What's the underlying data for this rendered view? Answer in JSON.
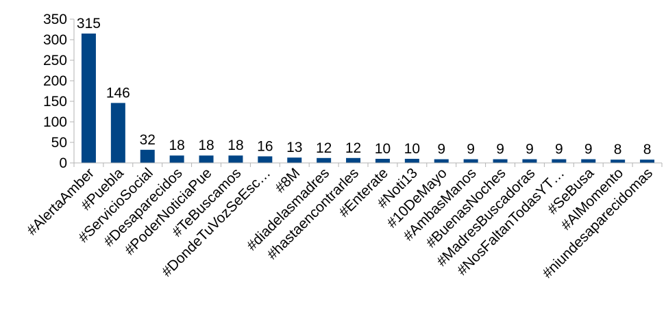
{
  "chart_data": {
    "type": "bar",
    "title": "",
    "xlabel": "",
    "ylabel": "",
    "ylim": [
      0,
      350
    ],
    "yticks": [
      0,
      50,
      100,
      150,
      200,
      250,
      300,
      350
    ],
    "grid": false,
    "legend": "none",
    "bar_color": "#004586",
    "categories": [
      "#AlertaAmber",
      "#Puebla",
      "#ServicioSocial",
      "#Desaparecidos",
      "#PoderNoticiaPue",
      "#TeBuscamos",
      "#DondeTuVozSeEsc…",
      "#8M",
      "#diadelasmadres",
      "#hastaencontrarles",
      "#Enterate",
      "#Noti13",
      "#10DeMayo",
      "#AmbasManos",
      "#BuenasNoches",
      "#MadresBuscadoras",
      "#NosFaltanTodasYT…",
      "#SeBusa",
      "#AlMomento",
      "#niundesaparecidomas"
    ],
    "values": [
      315,
      146,
      32,
      18,
      18,
      18,
      16,
      13,
      12,
      12,
      10,
      10,
      9,
      9,
      9,
      9,
      9,
      9,
      8,
      8
    ]
  }
}
